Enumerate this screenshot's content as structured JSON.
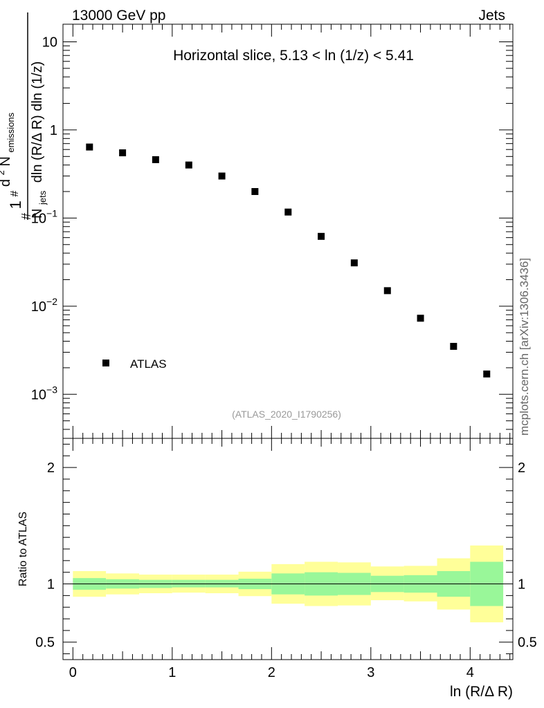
{
  "header": {
    "left": "13000 GeV pp",
    "right": "Jets"
  },
  "side_label": "mcplots.cern.ch [arXiv:1306.3436]",
  "chart_data": [
    {
      "type": "scatter",
      "yscale": "log",
      "title": "Horizontal slice, 5.13 < ln (1/z) < 5.41",
      "ylabel": {
        "prefix": "#",
        "one": "1",
        "njets": "N",
        "njets_sub": "jets",
        "hash": "#",
        "d2": "d",
        "d2_sup": "2",
        "nem": "N",
        "nem_sub": "emissions",
        "denominator": "dln (R/Δ R) dln (1/z)"
      },
      "xlim": [
        -0.1,
        4.43
      ],
      "ylim_log10": [
        -3.5,
        1.2
      ],
      "yticks": [
        {
          "base": "10",
          "exp": "−3",
          "value": 0.001
        },
        {
          "base": "10",
          "exp": "−2",
          "value": 0.01
        },
        {
          "base": "10",
          "exp": "−1",
          "value": 0.1
        },
        {
          "base": "1",
          "exp": "",
          "value": 1
        },
        {
          "base": "10",
          "exp": "",
          "value": 10
        }
      ],
      "series": [
        {
          "name": "ATLAS",
          "marker": "square",
          "x": [
            0.167,
            0.5,
            0.833,
            1.167,
            1.5,
            1.833,
            2.167,
            2.5,
            2.833,
            3.167,
            3.5,
            3.833,
            4.167
          ],
          "y": [
            0.64,
            0.55,
            0.46,
            0.4,
            0.3,
            0.2,
            0.117,
            0.062,
            0.031,
            0.015,
            0.0073,
            0.0035,
            0.0017
          ]
        }
      ],
      "legend": {
        "label": "ATLAS",
        "position": "bottom-left"
      },
      "watermark": "(ATLAS_2020_I1790256)"
    },
    {
      "type": "area",
      "ylabel": "Ratio to ATLAS",
      "xlabel": "ln (R/Δ R)",
      "xlim": [
        -0.1,
        4.43
      ],
      "ylim": [
        0.35,
        2.25
      ],
      "yticks": [
        {
          "label": "0.5",
          "value": 0.5
        },
        {
          "label": "1",
          "value": 1.0
        },
        {
          "label": "2",
          "value": 2.0
        }
      ],
      "xticks": [
        {
          "label": "0",
          "value": 0
        },
        {
          "label": "1",
          "value": 1
        },
        {
          "label": "2",
          "value": 2
        },
        {
          "label": "3",
          "value": 3
        },
        {
          "label": "4",
          "value": 4
        }
      ],
      "reference_line": 1.0,
      "bins": {
        "edges": [
          0,
          0.333,
          0.667,
          1.0,
          1.333,
          1.667,
          2.0,
          2.333,
          2.667,
          3.0,
          3.333,
          3.667,
          4.0,
          4.333
        ],
        "stat_lo": [
          0.95,
          0.96,
          0.965,
          0.97,
          0.97,
          0.955,
          0.91,
          0.9,
          0.905,
          0.93,
          0.925,
          0.89,
          0.81
        ],
        "stat_hi": [
          1.05,
          1.04,
          1.035,
          1.035,
          1.035,
          1.045,
          1.09,
          1.1,
          1.095,
          1.07,
          1.075,
          1.11,
          1.19
        ],
        "total_lo": [
          0.89,
          0.91,
          0.92,
          0.925,
          0.92,
          0.895,
          0.83,
          0.81,
          0.815,
          0.86,
          0.85,
          0.78,
          0.67
        ],
        "total_hi": [
          1.11,
          1.09,
          1.08,
          1.08,
          1.08,
          1.105,
          1.17,
          1.19,
          1.185,
          1.15,
          1.155,
          1.22,
          1.33
        ]
      },
      "band_colors": {
        "stat": "#99f799",
        "total": "#ffff99"
      }
    }
  ]
}
